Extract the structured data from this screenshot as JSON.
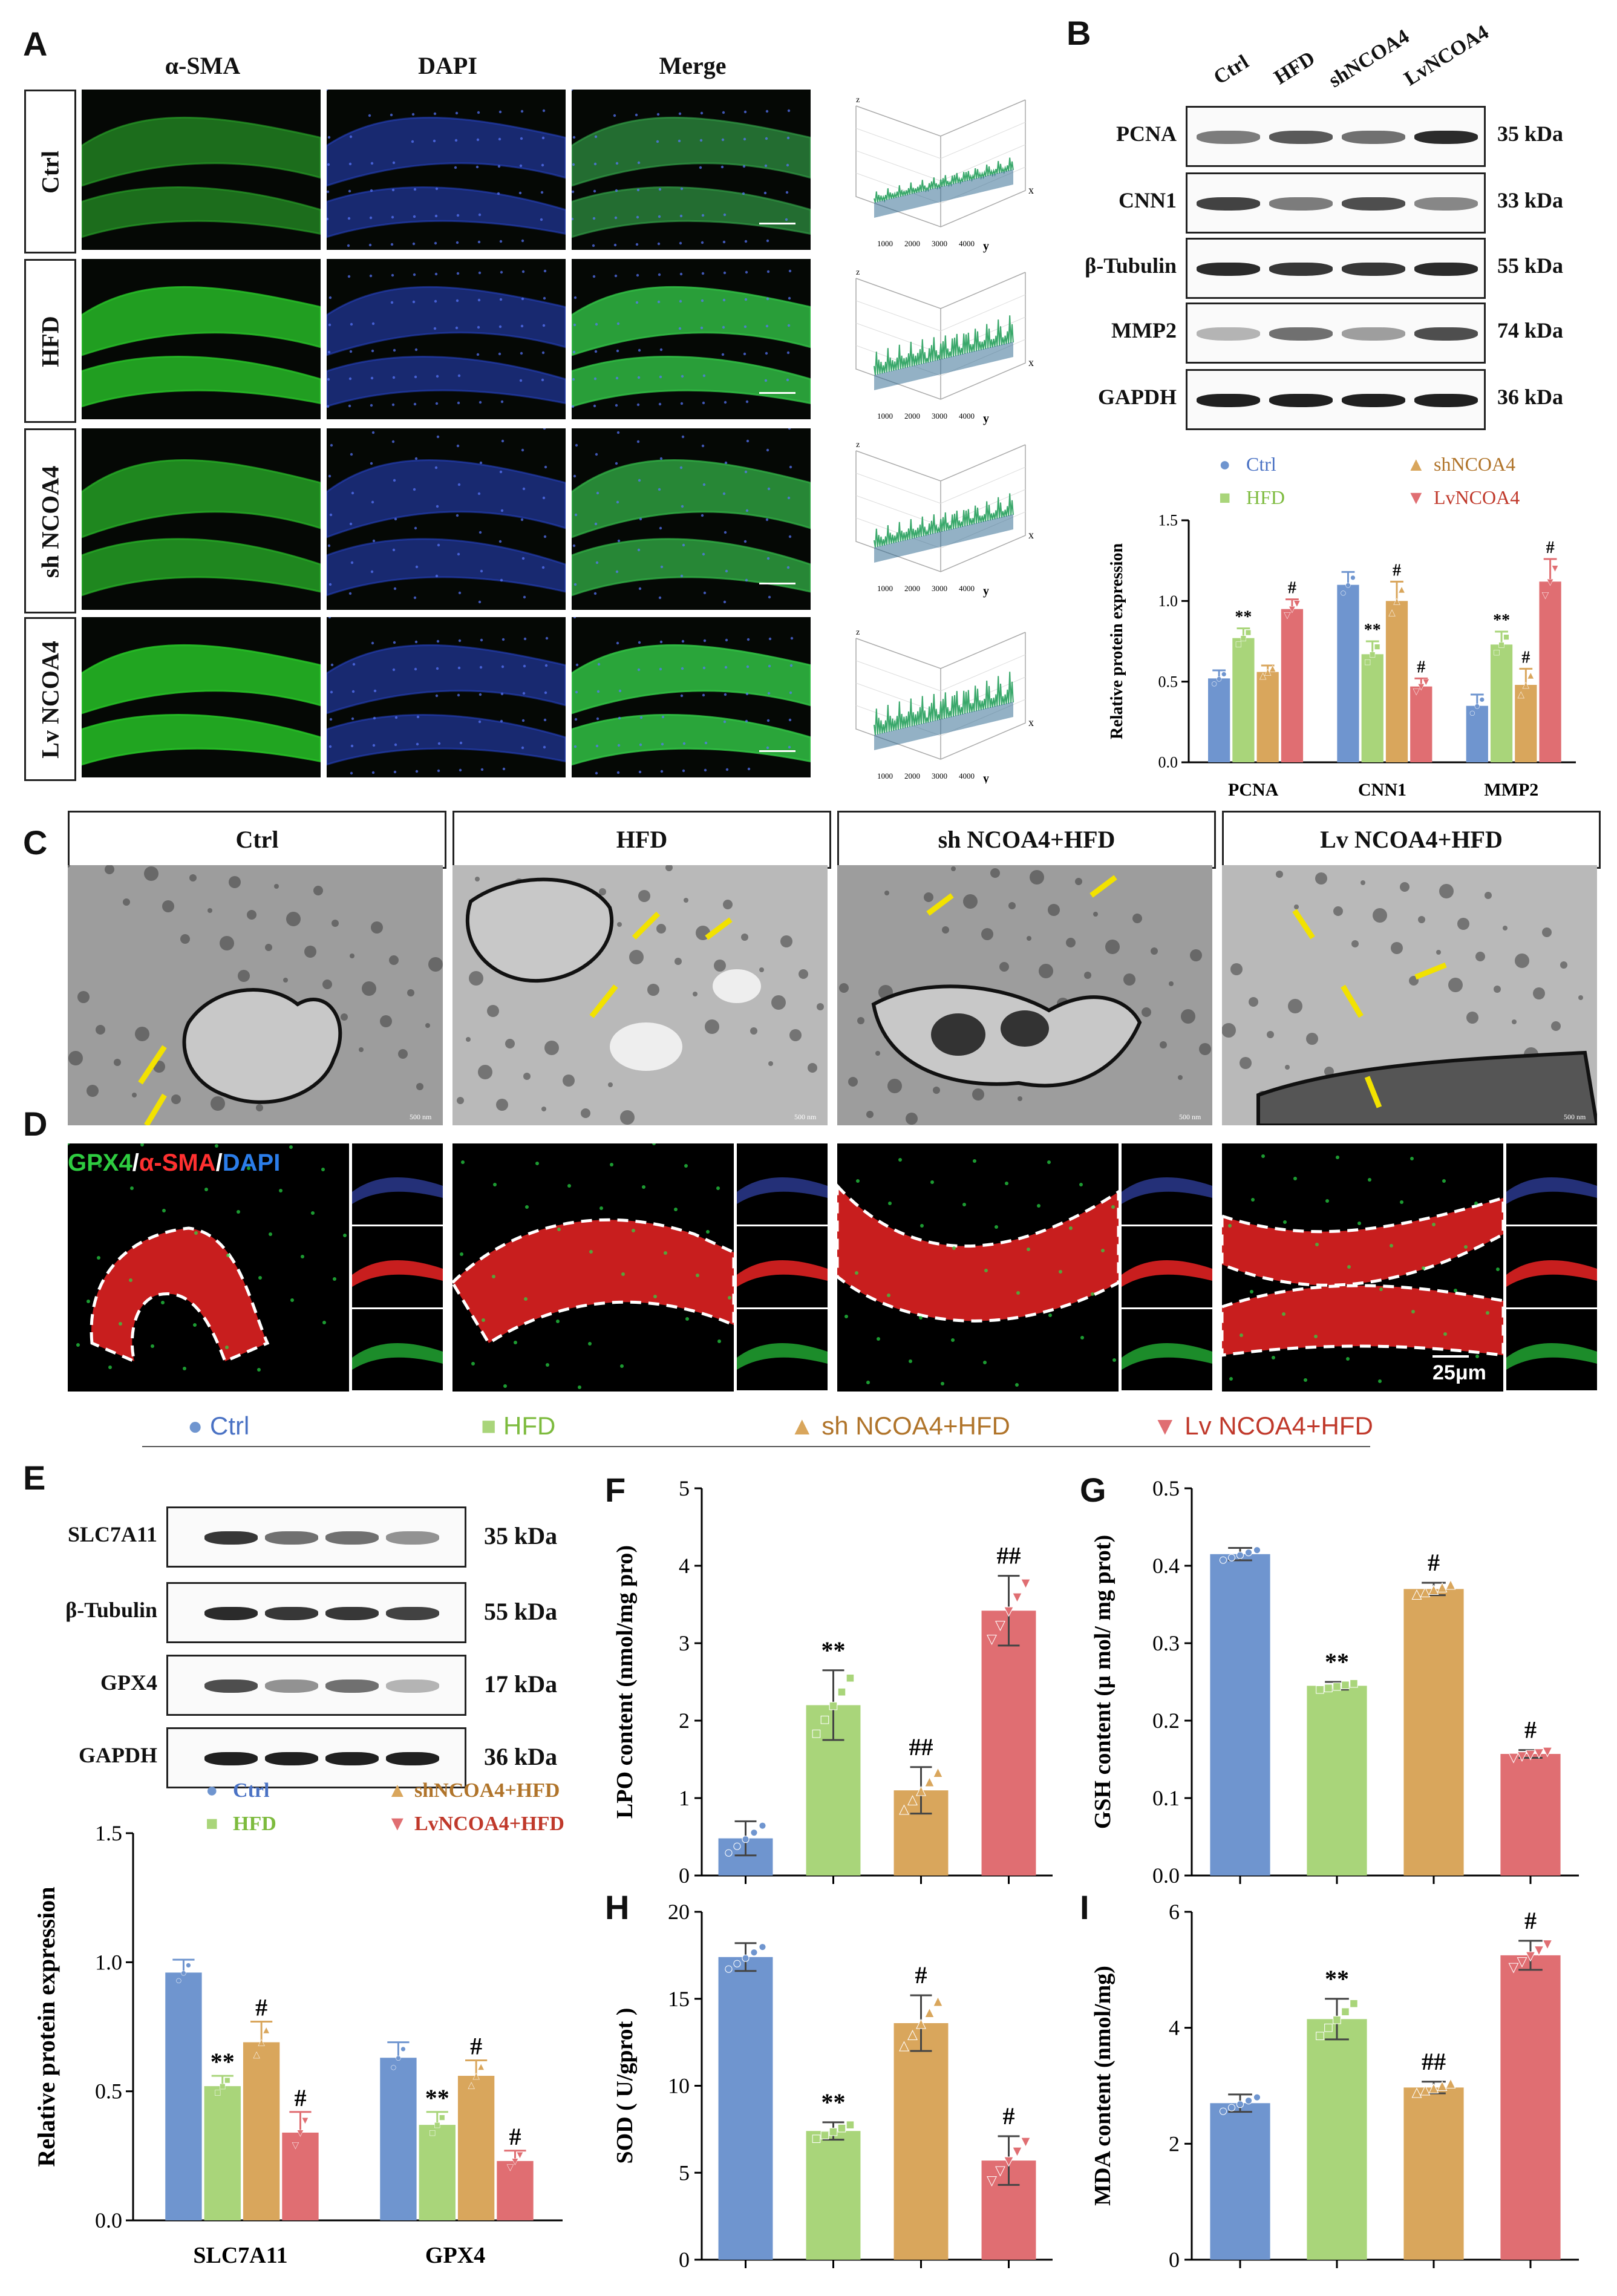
{
  "panels": {
    "A": "A",
    "B": "B",
    "C": "C",
    "D": "D",
    "E": "E",
    "F": "F",
    "G": "G",
    "H": "H",
    "I": "I"
  },
  "panel_a": {
    "columns": [
      "α-SMA",
      "DAPI",
      "Merge"
    ],
    "rows": [
      "Ctrl",
      "HFD",
      "sh NCOA4",
      "Lv NCOA4"
    ],
    "surface_axes": {
      "z": "z",
      "x": "x",
      "y": "y"
    },
    "surface_ticks": [
      "1000",
      "2000",
      "3000",
      "4000"
    ]
  },
  "panel_b": {
    "lanes": [
      "Ctrl",
      "HFD",
      "shNCOA4",
      "LvNCOA4"
    ],
    "blots": [
      {
        "label": "PCNA",
        "kda": "35 kDa"
      },
      {
        "label": "CNN1",
        "kda": "33 kDa"
      },
      {
        "label": "β-Tubulin",
        "kda": "55 kDa"
      },
      {
        "label": "MMP2",
        "kda": "74 kDa"
      },
      {
        "label": "GAPDH",
        "kda": "36 kDa"
      }
    ]
  },
  "panel_c": {
    "headers": [
      "Ctrl",
      "HFD",
      "sh NCOA4+HFD",
      "Lv NCOA4+HFD"
    ],
    "scale": "500 nm"
  },
  "panel_d": {
    "title_parts": [
      "GPX4",
      "/",
      "α-SMA",
      "/",
      "DAPI"
    ],
    "scale": "25μm"
  },
  "group_legend": [
    "Ctrl",
    "HFD",
    "sh NCOA4+HFD",
    "Lv NCOA4+HFD"
  ],
  "panel_e": {
    "blots": [
      {
        "label": "SLC7A11",
        "kda": "35 kDa"
      },
      {
        "label": "β-Tubulin",
        "kda": "55 kDa"
      },
      {
        "label": "GPX4",
        "kda": "17 kDa"
      },
      {
        "label": "GAPDH",
        "kda": "36 kDa"
      }
    ]
  },
  "colors": {
    "ctrl": "#6f95cf",
    "hfd": "#a9d57a",
    "sh": "#d9a65c",
    "lv": "#e06e72",
    "ctrl_text": "#4a72c4",
    "hfd_text": "#7dbb3e",
    "sh_text": "#b0742a",
    "lv_text": "#c0392b"
  },
  "chart_data": [
    {
      "id": "B",
      "type": "bar",
      "categories": [
        "PCNA",
        "CNN1",
        "MMP2"
      ],
      "ylabel": "Relative protein expression",
      "ylim": [
        0,
        1.5
      ],
      "yticks": [
        "0.0",
        "0.5",
        "1.0",
        "1.5"
      ],
      "legend": [
        "Ctrl",
        "HFD",
        "shNCOA4",
        "LvNCOA4"
      ],
      "series": [
        {
          "name": "Ctrl",
          "values": [
            0.52,
            1.1,
            0.35
          ],
          "sd": [
            0.05,
            0.08,
            0.07
          ]
        },
        {
          "name": "HFD",
          "values": [
            0.77,
            0.67,
            0.73
          ],
          "sd": [
            0.06,
            0.08,
            0.08
          ]
        },
        {
          "name": "shNCOA4",
          "values": [
            0.56,
            1.0,
            0.48
          ],
          "sd": [
            0.04,
            0.12,
            0.1
          ]
        },
        {
          "name": "LvNCOA4",
          "values": [
            0.95,
            0.47,
            1.12
          ],
          "sd": [
            0.06,
            0.05,
            0.14
          ]
        }
      ],
      "marks": [
        [
          "",
          "**",
          "",
          "#"
        ],
        [
          "",
          "**",
          "#",
          "#"
        ],
        [
          "",
          "**",
          "#",
          "#"
        ]
      ]
    },
    {
      "id": "E",
      "type": "bar",
      "categories": [
        "SLC7A11",
        "GPX4"
      ],
      "ylabel": "Relative protein expression",
      "ylim": [
        0,
        1.5
      ],
      "yticks": [
        "0.0",
        "0.5",
        "1.0",
        "1.5"
      ],
      "legend": [
        "Ctrl",
        "HFD",
        "shNCOA4+HFD",
        "LvNCOA4+HFD"
      ],
      "series": [
        {
          "name": "Ctrl",
          "values": [
            0.96,
            0.63
          ],
          "sd": [
            0.05,
            0.06
          ]
        },
        {
          "name": "HFD",
          "values": [
            0.52,
            0.37
          ],
          "sd": [
            0.04,
            0.05
          ]
        },
        {
          "name": "shNCOA4+HFD",
          "values": [
            0.69,
            0.56
          ],
          "sd": [
            0.08,
            0.06
          ]
        },
        {
          "name": "LvNCOA4+HFD",
          "values": [
            0.34,
            0.23
          ],
          "sd": [
            0.08,
            0.04
          ]
        }
      ],
      "marks": [
        [
          "",
          "**",
          "#",
          "#"
        ],
        [
          "",
          "**",
          "#",
          "#"
        ]
      ]
    },
    {
      "id": "F",
      "type": "bar",
      "ylabel": "LPO content (nmol/mg pro)",
      "ylim": [
        0,
        5
      ],
      "yticks": [
        "0",
        "1",
        "2",
        "3",
        "4",
        "5"
      ],
      "values": [
        0.48,
        2.2,
        1.1,
        3.42
      ],
      "sd": [
        0.22,
        0.45,
        0.3,
        0.45
      ],
      "marks": [
        "",
        "**",
        "##",
        "##"
      ]
    },
    {
      "id": "G",
      "type": "bar",
      "ylabel": "GSH content (μ mol/ mg prot)",
      "ylim": [
        0,
        0.5
      ],
      "yticks": [
        "0.0",
        "0.1",
        "0.2",
        "0.3",
        "0.4",
        "0.5"
      ],
      "values": [
        0.415,
        0.245,
        0.37,
        0.157
      ],
      "sd": [
        0.008,
        0.005,
        0.008,
        0.005
      ],
      "marks": [
        "",
        "**",
        "#",
        "#"
      ]
    },
    {
      "id": "H",
      "type": "bar",
      "ylabel": "SOD ( U/gprot )",
      "ylim": [
        0,
        20
      ],
      "yticks": [
        "0",
        "5",
        "10",
        "15",
        "20"
      ],
      "values": [
        17.4,
        7.4,
        13.6,
        5.7
      ],
      "sd": [
        0.8,
        0.5,
        1.6,
        1.4
      ],
      "marks": [
        "",
        "**",
        "#",
        "#"
      ]
    },
    {
      "id": "I",
      "type": "bar",
      "ylabel": "MDA content (nmol/mg)",
      "ylim": [
        0,
        6
      ],
      "yticks": [
        "0",
        "2",
        "4",
        "6"
      ],
      "values": [
        2.7,
        4.15,
        2.97,
        5.25
      ],
      "sd": [
        0.15,
        0.35,
        0.1,
        0.25
      ],
      "marks": [
        "",
        "**",
        "##",
        "#"
      ]
    }
  ]
}
